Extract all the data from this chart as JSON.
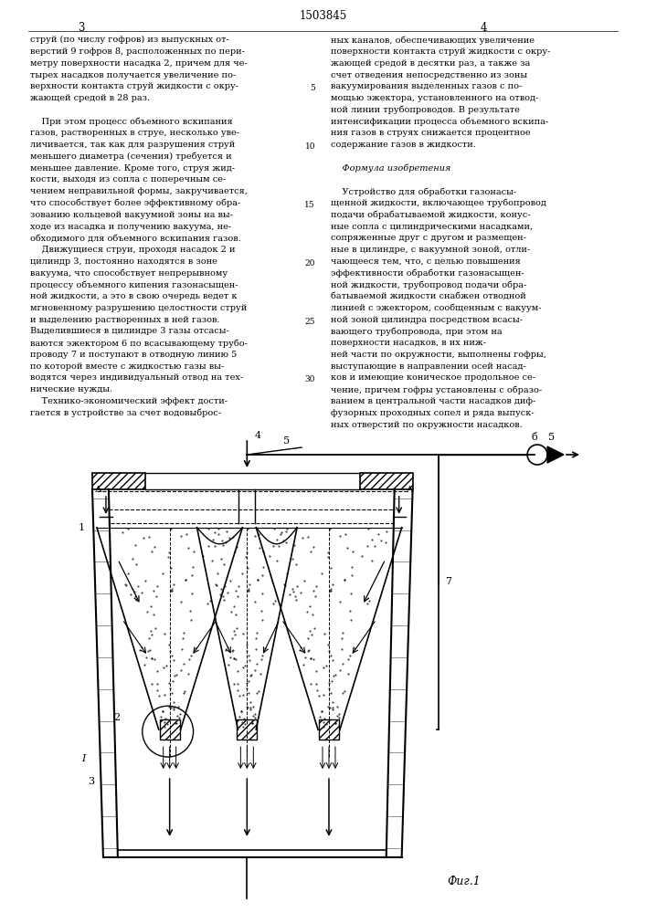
{
  "page_number_center": "1503845",
  "col_left_number": "3",
  "col_right_number": "4",
  "background": "#ffffff",
  "text_color": "#000000",
  "line_color": "#000000",
  "fig_label": "Фиг.1",
  "col_left_text": [
    "струй (по числу гофров) из выпускных от-",
    "верстий 9 гофров 8, расположенных по пери-",
    "метру поверхности насадка 2, причем для че-",
    "тырех насадков получается увеличение по-",
    "верхности контакта струй жидкости с окру-",
    "жающей средой в 28 раз.",
    "",
    "    При этом процесс объемного вскипания",
    "газов, растворенных в струе, несколько уве-",
    "личивается, так как для разрушения струй",
    "меньшего диаметра (сечения) требуется и",
    "меньшее давление. Кроме того, струя жид-",
    "кости, выходя из сопла с поперечным се-",
    "чением неправильной формы, закручивается,",
    "что способствует более эффективному обра-",
    "зованию кольцевой вакуумной зоны на вы-",
    "ходе из насадка и получению вакуума, не-",
    "обходимого для объемного вскипания газов.",
    "    Движущиеся струи, проходя насадок 2 и",
    "цилиндр 3, постоянно находятся в зоне",
    "вакуума, что способствует непрерывному",
    "процессу объемного кипения газонасыщен-",
    "ной жидкости, а это в свою очередь ведет к",
    "мгновенному разрушению целостности струй",
    "и выделению растворенных в ней газов.",
    "Выделившиеся в цилиндре 3 газы отсасы-",
    "ваются эжектором 6 по всасывающему трубо-",
    "проводу 7 и поступают в отводную линию 5",
    "по которой вместе с жидкостью газы вы-",
    "водятся через индивидуальный отвод на тех-",
    "нические нужды.",
    "    Технико-экономический эффект дости-",
    "гается в устройстве за счет водовыброс-"
  ],
  "col_right_text": [
    "ных каналов, обеспечивающих увеличение",
    "поверхности контакта струй жидкости с окру-",
    "жающей средой в десятки раз, а также за",
    "счет отведения непосредственно из зоны",
    "вакуумирования выделенных газов с по-",
    "мощью эжектора, установленного на отвод-",
    "ной линии трубопроводов. В результате",
    "интенсификации процесса объемного вскипа-",
    "ния газов в струях снижается процентное",
    "содержание газов в жидкости.",
    "",
    "    Формула изобретения",
    "",
    "    Устройство для обработки газонасы-",
    "щенной жидкости, включающее трубопровод",
    "подачи обрабатываемой жидкости, конус-",
    "ные сопла с цилиндрическими насадками,",
    "сопряженные друг с другом и размещен-",
    "ные в цилиндре, с вакуумной зоной, отли-",
    "чающееся тем, что, с целью повышения",
    "эффективности обработки газонасыщен-",
    "ной жидкости, трубопровод подачи обра-",
    "батываемой жидкости снабжен отводной",
    "линией с эжектором, сообщенным с вакуум-",
    "ной зоной цилиндра посредством всасы-",
    "вающего трубопровода, при этом на",
    "поверхности насадков, в их ниж-",
    "ней части по окружности, выполнены гофры,",
    "выступающие в направлении осей насад-",
    "ков и имеющие коническое продольное се-",
    "чение, причем гофры установлены с образо-",
    "ванием в центральной части насадков диф-",
    "фузорных проходных сопел и ряда выпуск-",
    "ных отверстий по окружности насадков."
  ]
}
